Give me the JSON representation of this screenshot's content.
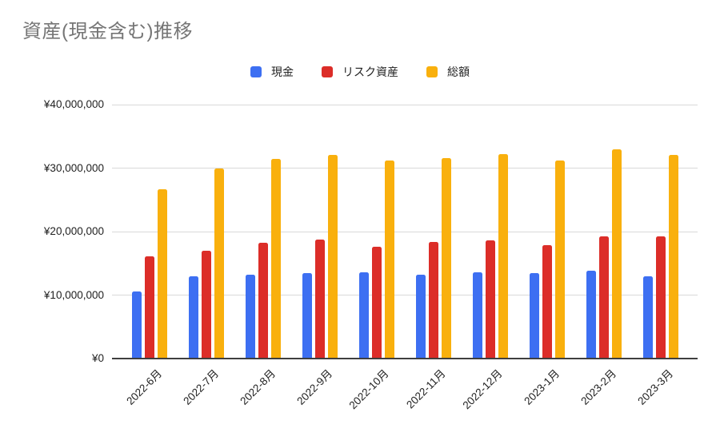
{
  "title": "資産(現金含む)推移",
  "title_color": "#757575",
  "chart_data": {
    "type": "bar",
    "grouped": true,
    "title": "資産(現金含む)推移",
    "legend_position": "top",
    "grid": true,
    "background": "#ffffff",
    "gridline_color": "#d9d9d9",
    "axis_line_color": "#3f3f3f",
    "tick_label_color": "#1f1f1f",
    "ylim": [
      0,
      40000000
    ],
    "y_ticks": [
      {
        "value": 40000000,
        "label": "¥40,000,000"
      },
      {
        "value": 30000000,
        "label": "¥30,000,000"
      },
      {
        "value": 20000000,
        "label": "¥20,000,000"
      },
      {
        "value": 10000000,
        "label": "¥10,000,000"
      },
      {
        "value": 0,
        "label": "¥0"
      }
    ],
    "categories": [
      "2022-6月",
      "2022-7月",
      "2022-8月",
      "2022-9月",
      "2022-10月",
      "2022-11月",
      "2022-12月",
      "2023-1月",
      "2023-2月",
      "2023-3月"
    ],
    "series": [
      {
        "id": "cash",
        "name": "現金",
        "color": "#3d6ff2",
        "values": [
          10600000,
          13000000,
          13200000,
          13400000,
          13600000,
          13200000,
          13600000,
          13400000,
          13800000,
          12900000
        ]
      },
      {
        "id": "risk-assets",
        "name": "リスク資産",
        "color": "#dc2d28",
        "values": [
          16100000,
          17000000,
          18200000,
          18700000,
          17600000,
          18400000,
          18600000,
          17800000,
          19200000,
          19200000
        ]
      },
      {
        "id": "total",
        "name": "総額",
        "color": "#f9b00d",
        "values": [
          26700000,
          30000000,
          31400000,
          32100000,
          31200000,
          31600000,
          32200000,
          31200000,
          33000000,
          32100000
        ]
      }
    ]
  }
}
